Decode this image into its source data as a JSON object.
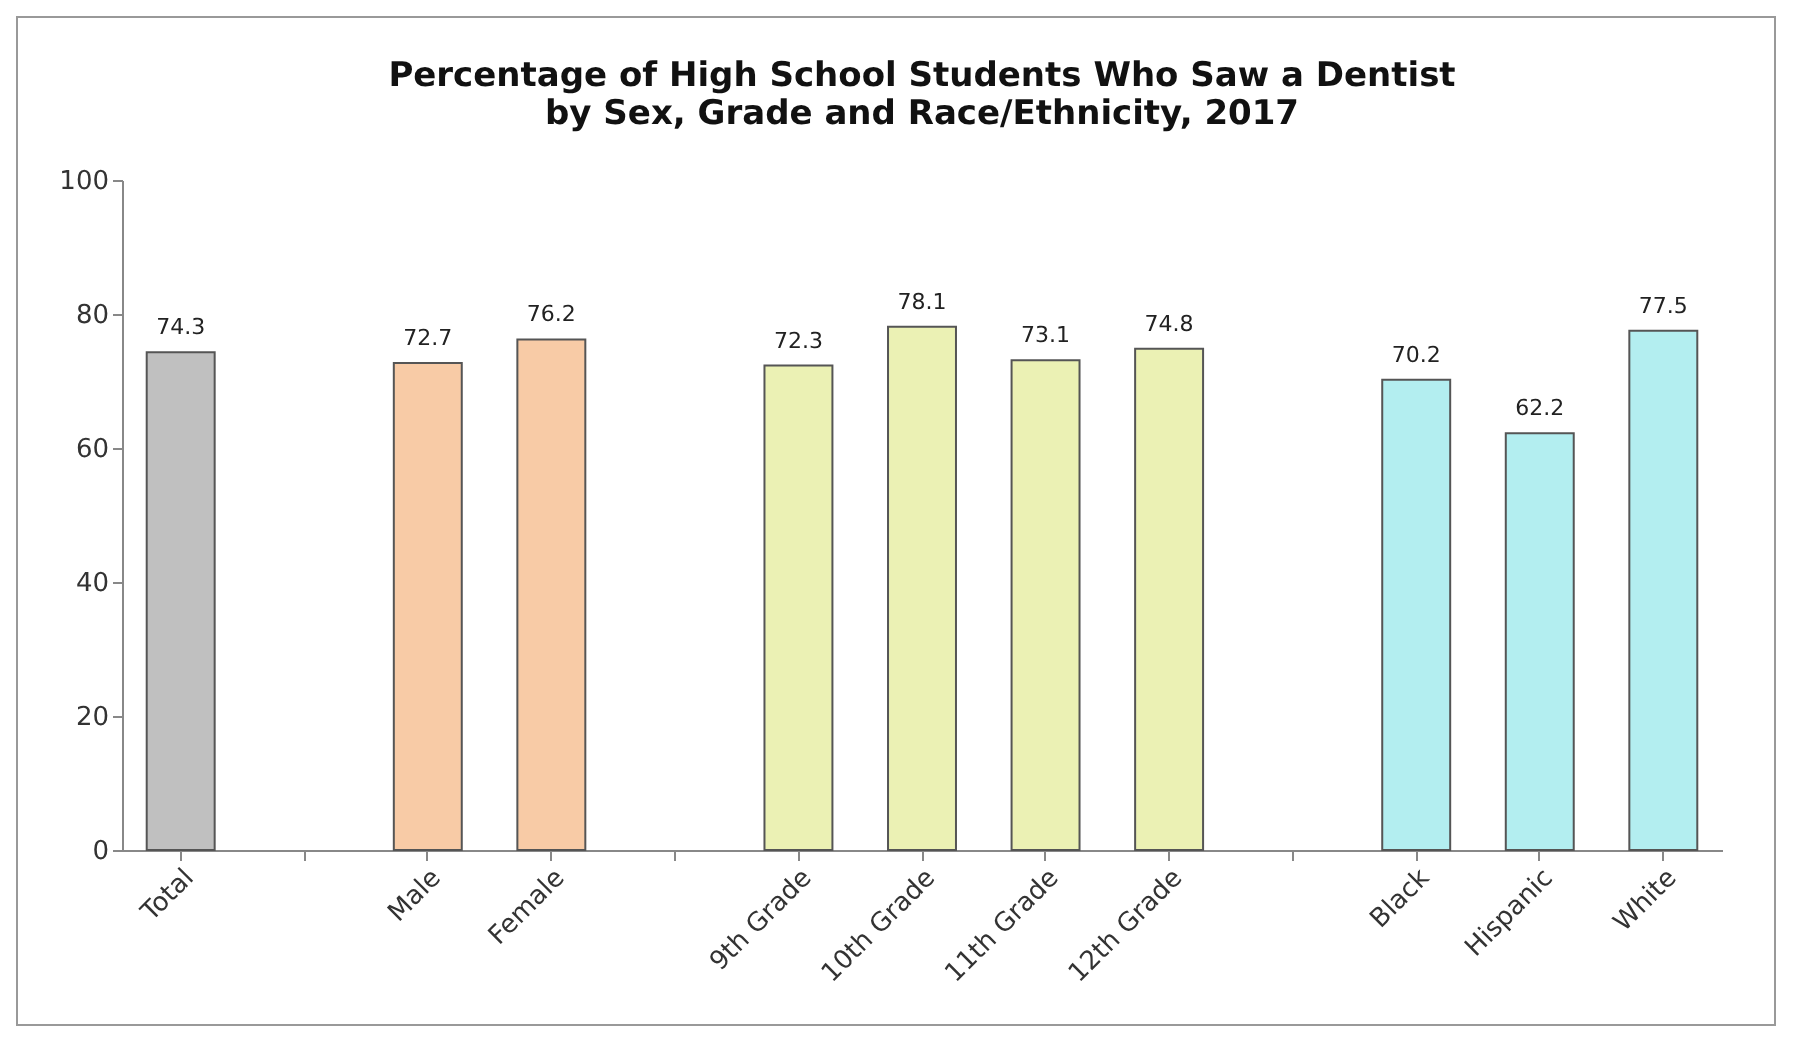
{
  "chart_data": {
    "type": "bar",
    "title": "Percentage of High School Students Who Saw a Dentist by Sex, Grade and Race/Ethnicity, 2017",
    "categories": [
      "Total",
      null,
      "Male",
      "Female",
      null,
      "9th Grade",
      "10th Grade",
      "11th Grade",
      "12th Grade",
      null,
      "Black",
      "Hispanic",
      "White"
    ],
    "values": [
      74.3,
      null,
      72.7,
      76.2,
      null,
      72.3,
      78.1,
      73.1,
      74.8,
      null,
      70.2,
      62.2,
      77.5
    ],
    "colors": [
      "#c0c0c0",
      null,
      "#f8cba6",
      "#f8cba6",
      null,
      "#ebf1b4",
      "#ebf1b4",
      "#ebf1b4",
      "#ebf1b4",
      null,
      "#b3eef0",
      "#b3eef0",
      "#b3eef0"
    ],
    "ylim": [
      0,
      100
    ],
    "yticks": [
      0,
      20,
      40,
      60,
      80,
      100
    ],
    "grid": false,
    "data_labels": true
  }
}
